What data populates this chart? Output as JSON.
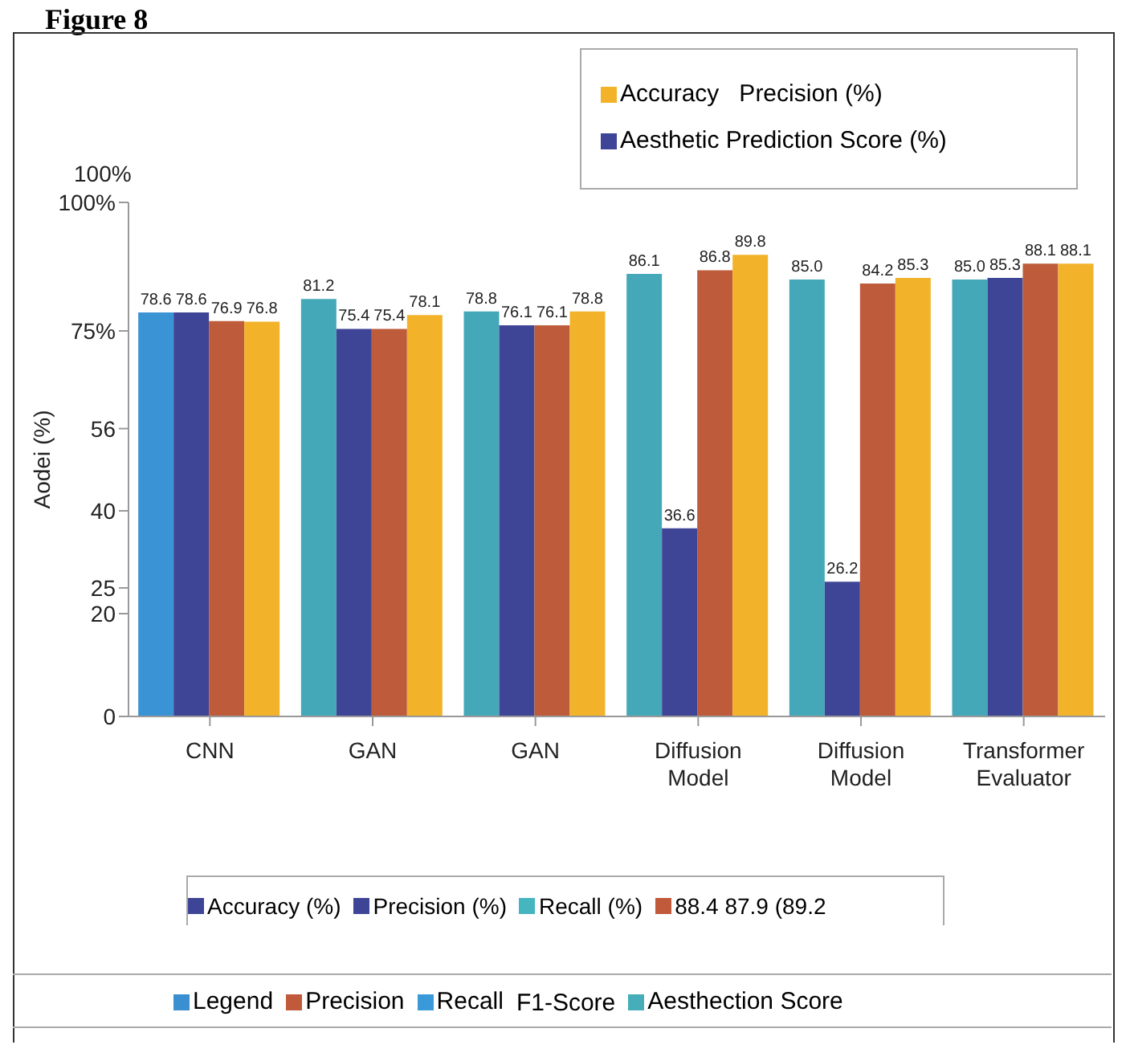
{
  "chart_data": {
    "type": "bar",
    "title": "Figure 8",
    "ylabel": "Aodei (%)",
    "categories": [
      "CNN",
      "GAN",
      "GAN",
      "Diffusion Model",
      "Diffusion Model",
      "Transformer Evaluator"
    ],
    "ylim": [
      0,
      100
    ],
    "yticks": [
      0,
      20,
      25,
      40,
      56,
      {
        "value": 75,
        "label": "75%"
      },
      {
        "value": 100,
        "label": "100%"
      }
    ],
    "annotations": [
      "100%"
    ],
    "legend": "bottom",
    "series": [
      {
        "color": "#45a8b8",
        "colors": [
          "#3a93d4",
          "#45a8b8",
          "#45a8b8",
          "#45a8b8",
          "#45a8b8",
          "#45a8b8"
        ],
        "values": [
          78.6,
          81.2,
          78.8,
          86.1,
          85.0,
          85.0
        ],
        "value_labels": [
          "78.6",
          "81.2",
          "78.8",
          "86.1",
          "85.0",
          "85.0"
        ]
      },
      {
        "name": "Aesthetic Prediction Score (%)",
        "color": "#3f4596",
        "values": [
          78.6,
          75.4,
          76.1,
          36.6,
          26.2,
          85.3
        ],
        "value_labels": [
          "78.6",
          "75.4",
          "76.1",
          "36.6",
          "26.2",
          "85.3"
        ]
      },
      {
        "color": "#bd5b3b",
        "values": [
          76.9,
          75.4,
          76.1,
          86.8,
          84.2,
          88.1
        ],
        "value_labels": [
          "76.9",
          "75.4",
          "76.1",
          "86.8",
          "84.2",
          "88.1"
        ]
      },
      {
        "name": "Accuracy   Precision (%)",
        "color": "#f2b32b",
        "values": [
          76.8,
          78.1,
          78.8,
          89.8,
          85.3,
          88.1
        ],
        "value_labels": [
          "76.8",
          "78.1",
          "78.8",
          "89.8",
          "85.3",
          "88.1"
        ]
      },
      {
        "name": "Accuracy (%)",
        "color": "#3f4596",
        "values": [
          null,
          null,
          null,
          null,
          null,
          null
        ]
      },
      {
        "name": "Precision (%)",
        "color": "#3f4596",
        "values": [
          null,
          null,
          null,
          null,
          null,
          null
        ]
      },
      {
        "name": "Recall (%)",
        "color": "#45b5c0",
        "values": [
          null,
          null,
          null,
          null,
          null,
          null
        ]
      },
      {
        "name": "88.4 87.9 (89.2",
        "color": "#c05a3a",
        "values": [
          null,
          null,
          null,
          null,
          null,
          null
        ]
      },
      {
        "name": "Legend",
        "color": "#3a8fd0",
        "values": [
          null,
          null,
          null,
          null,
          null,
          null
        ]
      },
      {
        "name": "Precision",
        "color": "#c05a3a",
        "values": [
          null,
          null,
          null,
          null,
          null,
          null
        ]
      },
      {
        "name": "Recall",
        "color": "#3a9ad9",
        "values": [
          null,
          null,
          null,
          null,
          null,
          null
        ]
      },
      {
        "name": "F1-Score",
        "color": null,
        "values": [
          null,
          null,
          null,
          null,
          null,
          null
        ]
      },
      {
        "name": "Aesthection Score",
        "color": "#45aeb9",
        "values": [
          null,
          null,
          null,
          null,
          null,
          null
        ]
      }
    ]
  }
}
